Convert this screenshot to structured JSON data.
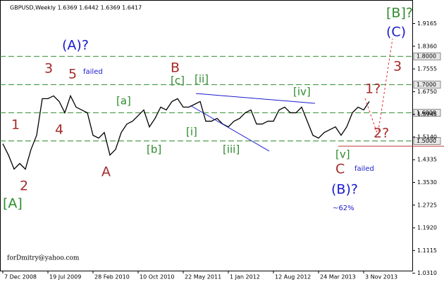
{
  "chart_data": {
    "type": "line",
    "title": "GBPUSD,Weekly  1.6369 1.6442 1.6369 1.6417",
    "categories": [
      "7 Dec 2008",
      null,
      null,
      null,
      null,
      null,
      null,
      null,
      "19 Jul 2009",
      null,
      null,
      null,
      null,
      null,
      null,
      null,
      "28 Feb 2010",
      null,
      null,
      null,
      null,
      null,
      null,
      null,
      "10 Oct 2010",
      null,
      null,
      null,
      null,
      null,
      null,
      null,
      "22 May 2011",
      null,
      null,
      null,
      null,
      null,
      null,
      null,
      "1 Jan 2012",
      null,
      null,
      null,
      null,
      null,
      null,
      null,
      "12 Aug 2012",
      null,
      null,
      null,
      null,
      null,
      null,
      null,
      "24 Mar 2013",
      null,
      null,
      null,
      null,
      null,
      null,
      null,
      "3 Nov 2013",
      null
    ],
    "values": [
      1.49,
      1.45,
      1.4,
      1.42,
      1.4,
      1.47,
      1.52,
      1.65,
      1.65,
      1.66,
      1.64,
      1.6,
      1.66,
      1.62,
      1.61,
      1.6,
      1.52,
      1.51,
      1.53,
      1.45,
      1.47,
      1.53,
      1.56,
      1.57,
      1.59,
      1.61,
      1.55,
      1.58,
      1.62,
      1.61,
      1.64,
      1.65,
      1.62,
      1.62,
      1.63,
      1.64,
      1.57,
      1.57,
      1.58,
      1.56,
      1.55,
      1.57,
      1.58,
      1.6,
      1.61,
      1.56,
      1.56,
      1.57,
      1.57,
      1.61,
      1.62,
      1.6,
      1.6,
      1.62,
      1.57,
      1.52,
      1.51,
      1.53,
      1.54,
      1.55,
      1.52,
      1.55,
      1.6,
      1.62,
      1.61,
      1.64
    ],
    "color": "#000000",
    "ylim": [
      1.04,
      2.0
    ],
    "yticks": [
      1.9165,
      {
        "value": 1.836,
        "label": "1.8360"
      },
      1.7555,
      {
        "value": 1.675,
        "label": "1.6750"
      },
      1.5945,
      {
        "value": 1.514,
        "label": "1.5140"
      },
      1.4335,
      {
        "value": 1.353,
        "label": "1.3530"
      },
      1.2725,
      {
        "value": 1.192,
        "label": "1.1920"
      },
      1.1115,
      {
        "value": 1.031,
        "label": "1.0310"
      }
    ],
    "levels": [
      {
        "value": 1.8,
        "label": "1.8000"
      },
      {
        "value": 1.7,
        "label": "1.7000"
      },
      {
        "value": 1.6,
        "label": "1.6000"
      },
      {
        "value": 1.5,
        "label": "1.5000"
      }
    ],
    "level_color": "#2e8b2e",
    "support_line": 1.4814,
    "annotations": [
      "[B]?",
      "(C)",
      "(A)?",
      "failed",
      "3",
      "5",
      "B",
      "[c]",
      "[ii]",
      "[iv]",
      "[a]",
      "1",
      "4",
      "[i]",
      "[b]",
      "[iii]",
      "A",
      "2",
      "[v]",
      "C",
      "failed",
      "(B)?",
      "~62%",
      "[A]",
      "3",
      "1?",
      "2?"
    ],
    "footer": "forDmitry@yahoo.com"
  }
}
